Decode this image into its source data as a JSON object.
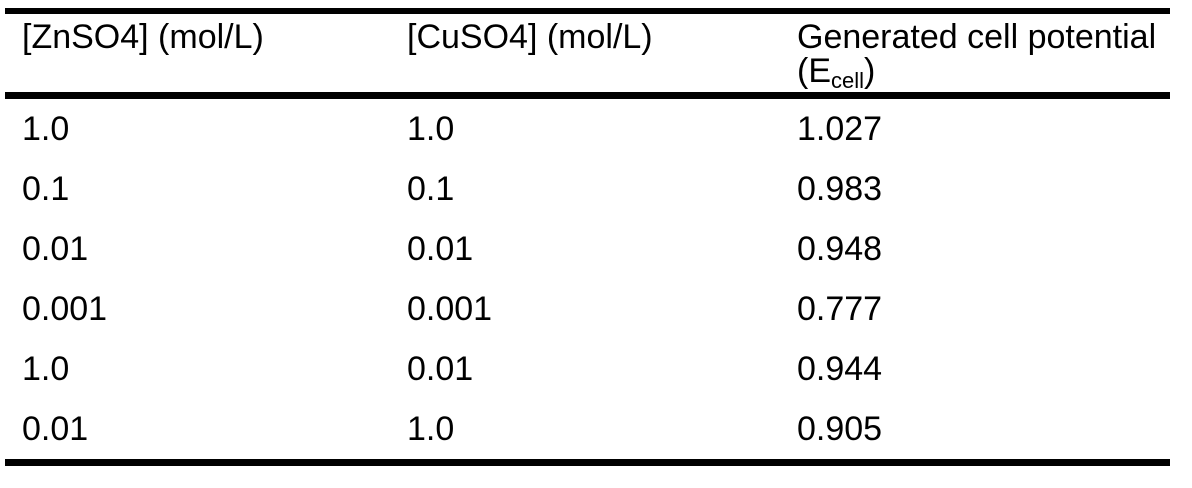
{
  "page": {
    "background": "#ffffff",
    "text_color": "#000000",
    "rule_color": "#000000"
  },
  "table": {
    "headers": {
      "znso4": "[ZnSO4] (mol/L)",
      "cuso4": "[CuSO4] (mol/L)",
      "ecell_line1": "Generated cell potential",
      "ecell_open": "(E",
      "ecell_sub": "cell",
      "ecell_close": ")"
    },
    "rows": [
      {
        "znso4": "1.0",
        "cuso4": "1.0",
        "ecell": "1.027"
      },
      {
        "znso4": "0.1",
        "cuso4": "0.1",
        "ecell": "0.983"
      },
      {
        "znso4": "0.01",
        "cuso4": "0.01",
        "ecell": "0.948"
      },
      {
        "znso4": "0.001",
        "cuso4": "0.001",
        "ecell": "0.777"
      },
      {
        "znso4": "1.0",
        "cuso4": "0.01",
        "ecell": "0.944"
      },
      {
        "znso4": "0.01",
        "cuso4": "1.0",
        "ecell": "0.905"
      }
    ]
  },
  "chart_data": {
    "type": "table",
    "columns": [
      "[ZnSO4] (mol/L)",
      "[CuSO4] (mol/L)",
      "Generated cell potential (Ecell)"
    ],
    "rows": [
      [
        1.0,
        1.0,
        1.027
      ],
      [
        0.1,
        0.1,
        0.983
      ],
      [
        0.01,
        0.01,
        0.948
      ],
      [
        0.001,
        0.001,
        0.777
      ],
      [
        1.0,
        0.01,
        0.944
      ],
      [
        0.01,
        1.0,
        0.905
      ]
    ]
  }
}
